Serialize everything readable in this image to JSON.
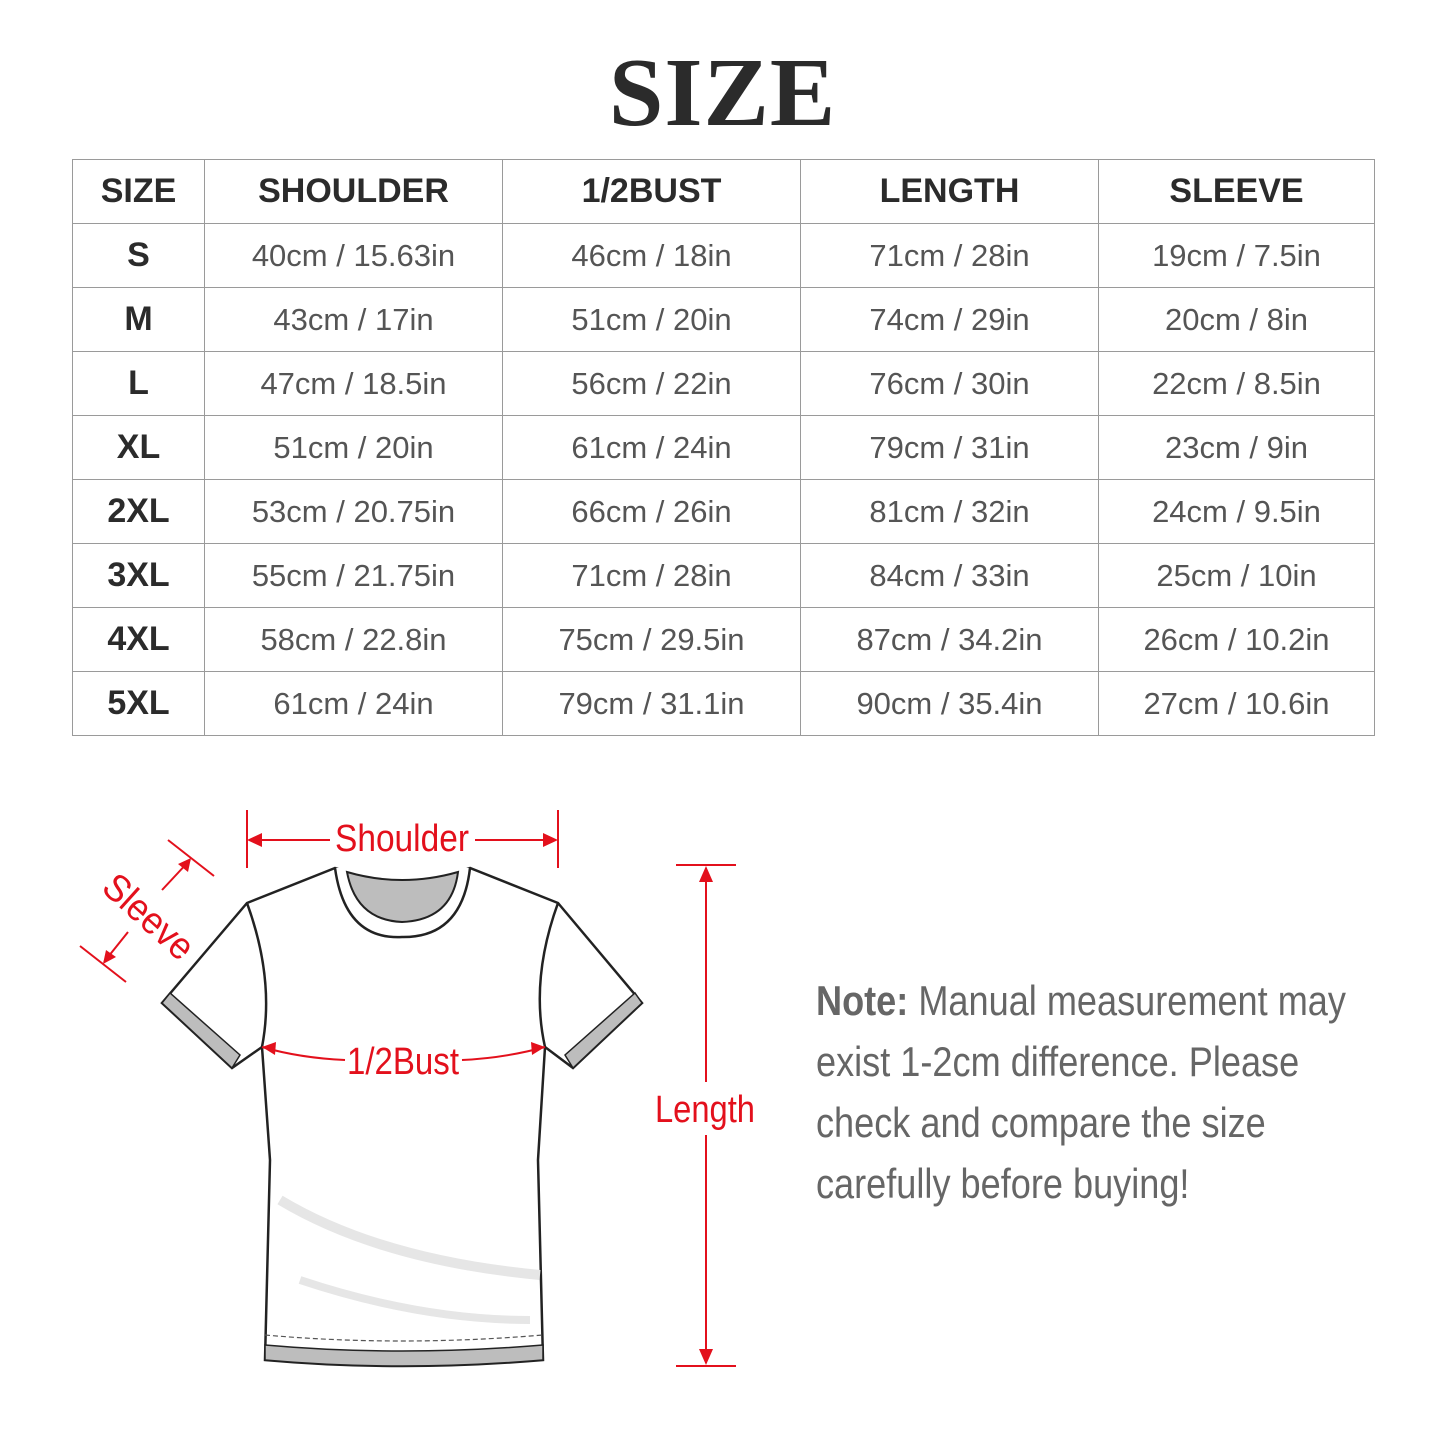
{
  "title": "SIZE",
  "table": {
    "headers": [
      "SIZE",
      "SHOULDER",
      "1/2BUST",
      "LENGTH",
      "SLEEVE"
    ],
    "rows": [
      [
        "S",
        "40cm / 15.63in",
        "46cm / 18in",
        "71cm / 28in",
        "19cm / 7.5in"
      ],
      [
        "M",
        "43cm / 17in",
        "51cm / 20in",
        "74cm / 29in",
        "20cm / 8in"
      ],
      [
        "L",
        "47cm / 18.5in",
        "56cm / 22in",
        "76cm / 30in",
        "22cm / 8.5in"
      ],
      [
        "XL",
        "51cm / 20in",
        "61cm / 24in",
        "79cm / 31in",
        "23cm / 9in"
      ],
      [
        "2XL",
        "53cm / 20.75in",
        "66cm / 26in",
        "81cm / 32in",
        "24cm / 9.5in"
      ],
      [
        "3XL",
        "55cm / 21.75in",
        "71cm / 28in",
        "84cm / 33in",
        "25cm / 10in"
      ],
      [
        "4XL",
        "58cm / 22.8in",
        "75cm / 29.5in",
        "87cm / 34.2in",
        "26cm / 10.2in"
      ],
      [
        "5XL",
        "61cm / 24in",
        "79cm / 31.1in",
        "90cm / 35.4in",
        "27cm / 10.6in"
      ]
    ]
  },
  "diagram": {
    "shoulder_label": "Shoulder",
    "sleeve_label": "Sleeve",
    "bust_label": "1/2Bust",
    "length_label": "Length",
    "accent_color": "#e3101c"
  },
  "note": {
    "label": "Note:",
    "text": " Manual measurement may exist 1-2cm difference. Please check and compare the size carefully before buying!"
  }
}
